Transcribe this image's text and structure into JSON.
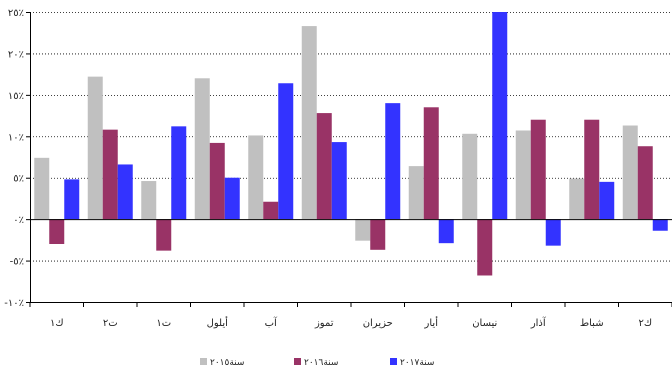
{
  "chart_data": {
    "type": "bar",
    "direction": "rtl",
    "categories": [
      "ك٢",
      "شباط",
      "آذار",
      "نيسان",
      "أيار",
      "حزيران",
      "تموز",
      "آب",
      "أيلول",
      "ت١",
      "ت٢",
      "ك١"
    ],
    "series": [
      {
        "name": "سنة٢٠١٥",
        "color": "#c0c0c0",
        "values": [
          11.3,
          4.9,
          10.7,
          10.3,
          6.4,
          -2.6,
          23.3,
          10.1,
          17.0,
          4.6,
          17.2,
          7.4
        ]
      },
      {
        "name": "سنة٢٠١٦",
        "color": "#993366",
        "values": [
          8.8,
          12.0,
          12.0,
          -6.8,
          13.5,
          -3.7,
          12.8,
          2.1,
          9.2,
          -3.8,
          10.8,
          -3.0
        ]
      },
      {
        "name": "سنة٢٠١٧",
        "color": "#3333ff",
        "values": [
          -1.4,
          4.5,
          -3.2,
          25.0,
          -2.9,
          14.0,
          9.3,
          16.4,
          5.0,
          11.2,
          6.6,
          4.8
        ]
      }
    ],
    "ylim": [
      -10,
      25
    ],
    "yticks": [
      "٢٥٪",
      "٢٠٪",
      "١٥٪",
      "١٠٪",
      "٥٪",
      "٠٪",
      "-٥٪",
      "-١٠٪"
    ],
    "title": "",
    "xlabel": "",
    "ylabel": "",
    "grid": "horizontal",
    "legend": "bottom"
  }
}
